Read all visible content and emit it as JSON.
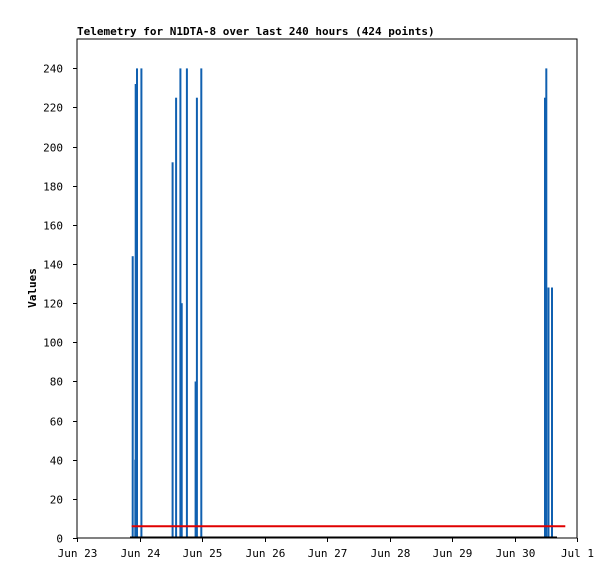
{
  "chart_data": {
    "type": "bar",
    "title": "Telemetry for N1DTA-8 over last 240 hours (424 points)",
    "xlabel": "",
    "ylabel": "Values",
    "ylim": [
      0,
      255
    ],
    "xlim": [
      "Jun 23 00:00",
      "Jul 1 00:00"
    ],
    "x_ticks": [
      "Jun 23",
      "Jun 24",
      "Jun 25",
      "Jun 26",
      "Jun 27",
      "Jun 28",
      "Jun 29",
      "Jun 30",
      "Jul 1"
    ],
    "y_ticks": [
      0,
      20,
      40,
      60,
      80,
      100,
      120,
      140,
      160,
      180,
      200,
      220,
      240
    ],
    "grid": false,
    "legend": "none",
    "colors": {
      "bars": "#1060b0",
      "line": "#e00000",
      "axis": "#000000"
    },
    "series": [
      {
        "type": "bar",
        "points": [
          {
            "x": "Jun 23 21:00",
            "y": 144
          },
          {
            "x": "Jun 23 22:00",
            "y": 40
          },
          {
            "x": "Jun 23 22:10",
            "y": 232
          },
          {
            "x": "Jun 23 22:40",
            "y": 240
          },
          {
            "x": "Jun 24 00:20",
            "y": 240
          },
          {
            "x": "Jun 24 12:20",
            "y": 192
          },
          {
            "x": "Jun 24 13:40",
            "y": 225
          },
          {
            "x": "Jun 24 15:20",
            "y": 240
          },
          {
            "x": "Jun 24 15:50",
            "y": 120
          },
          {
            "x": "Jun 24 17:50",
            "y": 240
          },
          {
            "x": "Jun 24 21:10",
            "y": 80
          },
          {
            "x": "Jun 24 21:40",
            "y": 225
          },
          {
            "x": "Jun 24 23:20",
            "y": 240
          },
          {
            "x": "Jun 30 11:20",
            "y": 225
          },
          {
            "x": "Jun 30 11:50",
            "y": 240
          },
          {
            "x": "Jun 30 12:40",
            "y": 128
          },
          {
            "x": "Jun 30 14:00",
            "y": 128
          }
        ]
      },
      {
        "type": "line",
        "points": [
          {
            "x": "Jun 23 21:00",
            "y": 6
          },
          {
            "x": "Jun 30 19:30",
            "y": 6
          }
        ]
      }
    ]
  }
}
